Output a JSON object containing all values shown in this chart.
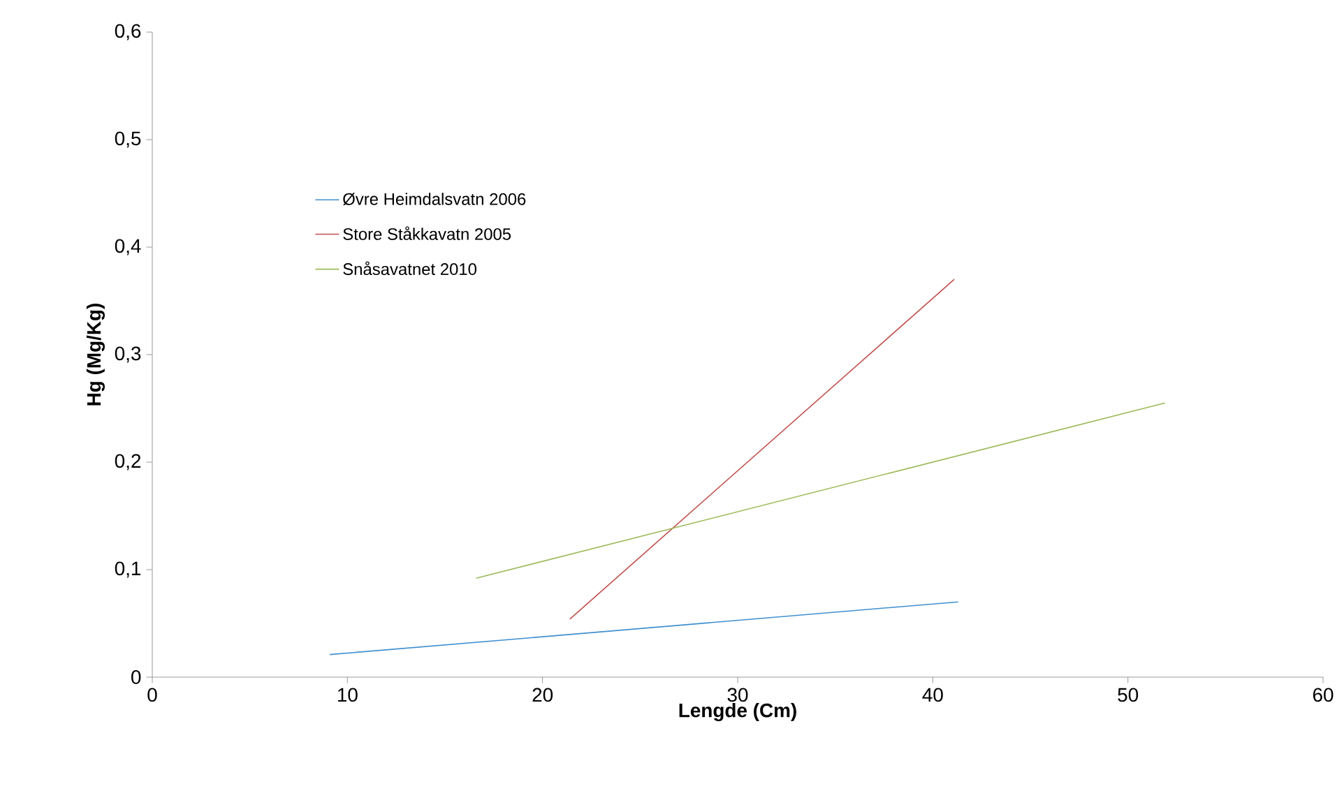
{
  "chart_data": {
    "type": "line",
    "xlabel": "Lengde (Cm)",
    "ylabel": "Hg (Mg/Kg)",
    "xlim": [
      0,
      60
    ],
    "xticks": [
      0,
      10,
      20,
      30,
      40,
      50,
      60
    ],
    "ylim": [
      0,
      0.6
    ],
    "yticks": [
      0,
      {
        "value": 0.1,
        "label": "0,1"
      },
      {
        "value": 0.2,
        "label": "0,2"
      },
      {
        "value": 0.3,
        "label": "0,3"
      },
      {
        "value": 0.4,
        "label": "0,4"
      },
      {
        "value": 0.5,
        "label": "0,5"
      },
      {
        "value": 0.6,
        "label": "0,6"
      }
    ],
    "grid": false,
    "legend": "top left",
    "marker": "none",
    "line_style": "solid",
    "series": [
      {
        "name": "Øvre Heimdalsvatn 2006",
        "color": "#3f8fd0",
        "x": [
          9.1,
          41.3
        ],
        "values": [
          0.021,
          0.07
        ]
      },
      {
        "name": "Store Ståkkavatn 2005",
        "color": "#c0504d",
        "x": [
          21.4,
          41.1
        ],
        "values": [
          0.054,
          0.37
        ]
      },
      {
        "name": "Snåsavatnet 2010",
        "color": "#9bbb59",
        "x": [
          16.6,
          51.9
        ],
        "values": [
          0.092,
          0.255
        ]
      }
    ]
  }
}
